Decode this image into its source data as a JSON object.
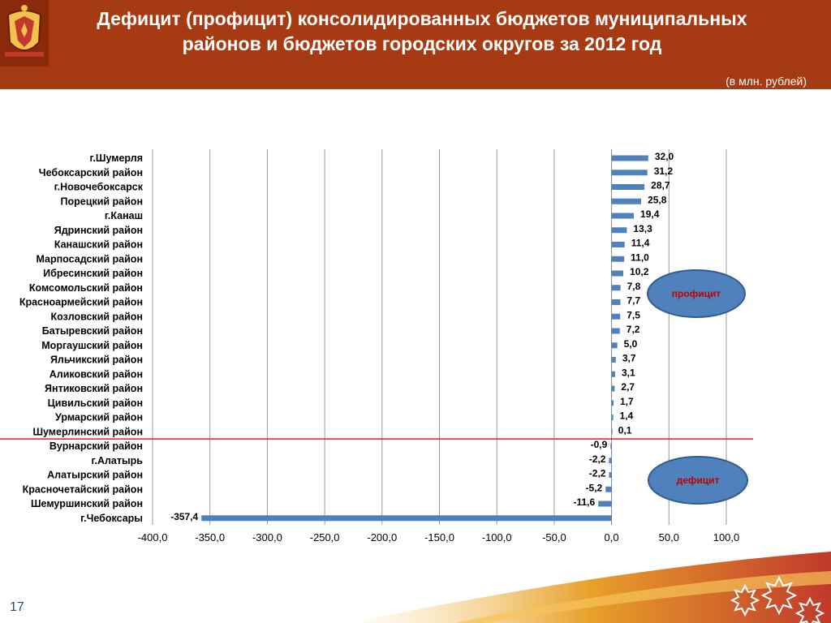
{
  "header": {
    "title": "Дефицит (профицит)  консолидированных бюджетов муниципальных районов и бюджетов городских округов за 2012 год",
    "units": "(в млн. рублей)",
    "background": "#a63a12"
  },
  "annotations": {
    "surplus_label": "профицит",
    "deficit_label": "дефицит",
    "ellipse_color": "#4f81bd",
    "label_color": "#c00000"
  },
  "page_number": "17",
  "chart_data": {
    "type": "bar",
    "orientation": "horizontal",
    "categories": [
      "г.Шумерля",
      "Чебоксарский район",
      "г.Новочебоксарск",
      "Порецкий район",
      "г.Канаш",
      "Ядринский район",
      "Канашский район",
      "Марпосадский район",
      "Ибресинский район",
      "Комсомольский район",
      "Красноармейский район",
      "Козловский район",
      "Батыревский район",
      "Моргаушский район",
      "Яльчикский район",
      "Аликовский район",
      "Янтиковский район",
      "Цивильский район",
      "Урмарский район",
      "Шумерлинский район",
      "Вурнарский район",
      "г.Алатырь",
      "Алатырский район",
      "Красночетайский район",
      "Шемуршинский район",
      "г.Чебоксары"
    ],
    "values": [
      32.0,
      31.2,
      28.7,
      25.8,
      19.4,
      13.3,
      11.4,
      11.0,
      10.2,
      7.8,
      7.7,
      7.5,
      7.2,
      5.0,
      3.7,
      3.1,
      2.7,
      1.7,
      1.4,
      0.1,
      -0.9,
      -2.2,
      -2.2,
      -5.2,
      -11.6,
      -357.4
    ],
    "value_labels": [
      "32,0",
      "31,2",
      "28,7",
      "25,8",
      "19,4",
      "13,3",
      "11,4",
      "11,0",
      "10,2",
      "7,8",
      "7,7",
      "7,5",
      "7,2",
      "5,0",
      "3,7",
      "3,1",
      "2,7",
      "1,7",
      "1,4",
      "0,1",
      "-0,9",
      "-2,2",
      "-2,2",
      "-5,2",
      "-11,6",
      "-357,4"
    ],
    "xlim": [
      -400,
      100
    ],
    "tick_values": [
      -400,
      -350,
      -300,
      -250,
      -200,
      -150,
      -100,
      -50,
      0,
      50,
      100
    ],
    "tick_labels": [
      "-400,0",
      "-350,0",
      "-300,0",
      "-250,0",
      "-200,0",
      "-150,0",
      "-100,0",
      "-50,0",
      "0,0",
      "50,0",
      "100,0"
    ],
    "bar_color": "#4f81bd",
    "divider_color": "#e02020",
    "grid": true
  }
}
